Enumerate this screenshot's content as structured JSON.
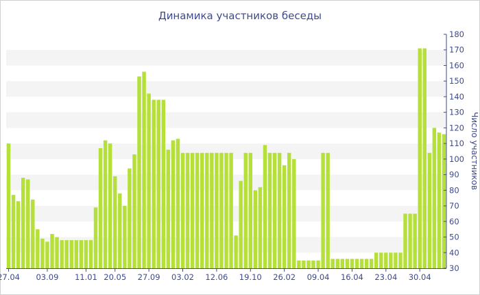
{
  "chart_data": {
    "type": "bar",
    "title": "Динамика участников беседы",
    "ylabel": "Число участников",
    "xlabel": "",
    "ylim": [
      30,
      180
    ],
    "ytick_step": 10,
    "y_axis_position": "right",
    "grid": "alternating horizontal bands",
    "bar_color": "#b5e03a",
    "band_color": "#f4f4f4",
    "text_color": "#3e4a8a",
    "x_tick_labels": [
      {
        "index": 0,
        "label": "27.04"
      },
      {
        "index": 8,
        "label": "03.09"
      },
      {
        "index": 16,
        "label": "11.01"
      },
      {
        "index": 22,
        "label": "20.05"
      },
      {
        "index": 29,
        "label": "27.09"
      },
      {
        "index": 36,
        "label": "03.02"
      },
      {
        "index": 43,
        "label": "12.06"
      },
      {
        "index": 50,
        "label": "19.10"
      },
      {
        "index": 57,
        "label": "26.02"
      },
      {
        "index": 64,
        "label": "09.04"
      },
      {
        "index": 71,
        "label": "16.04"
      },
      {
        "index": 78,
        "label": "23.04"
      },
      {
        "index": 85,
        "label": "30.04"
      }
    ],
    "values": [
      110,
      77,
      73,
      88,
      87,
      74,
      55,
      49,
      47,
      52,
      50,
      48,
      48,
      48,
      48,
      48,
      48,
      48,
      69,
      107,
      112,
      110,
      89,
      78,
      70,
      94,
      103,
      153,
      156,
      142,
      138,
      138,
      138,
      106,
      112,
      113,
      104,
      104,
      104,
      104,
      104,
      104,
      104,
      104,
      104,
      104,
      104,
      51,
      86,
      104,
      104,
      80,
      82,
      109,
      104,
      104,
      104,
      96,
      104,
      100,
      35,
      35,
      35,
      35,
      35,
      104,
      104,
      36,
      36,
      36,
      36,
      36,
      36,
      36,
      36,
      36,
      40,
      40,
      40,
      40,
      40,
      40,
      65,
      65,
      65,
      171,
      171,
      104,
      120,
      117,
      116
    ]
  }
}
